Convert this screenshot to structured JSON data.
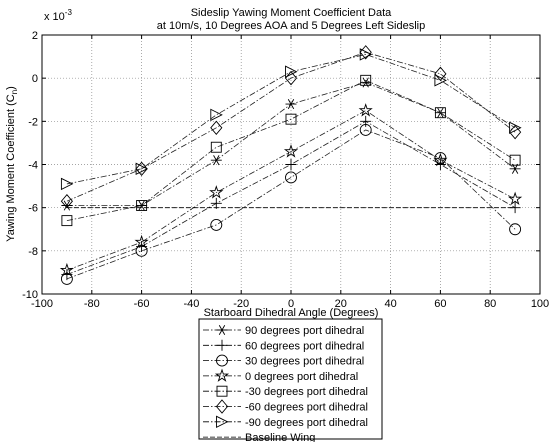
{
  "chart_data": {
    "type": "line",
    "title": "Sideslip Yawing Moment Coefficient Data",
    "subtitle": "at 10m/s, 10 Degrees AOA and 5 Degrees Left Sideslip",
    "xlabel": "Starboard Dihedral Angle (Degrees)",
    "ylabel": "Yawing Moment Coefficient (C",
    "ylabel_sub": "n",
    "ylabel_close": ")",
    "exponent_label": "x 10",
    "exponent_power": "-3",
    "xlim": [
      -100,
      100
    ],
    "ylim": [
      -10,
      2
    ],
    "grid": true,
    "legend_position": "bottom-outside",
    "xticks": [
      "-100",
      "-80",
      "-60",
      "-40",
      "-20",
      "0",
      "20",
      "40",
      "60",
      "80",
      "100"
    ],
    "yticks": [
      "2",
      "0",
      "-2",
      "-4",
      "-6",
      "-8",
      "-10"
    ],
    "x": [
      -90,
      -60,
      -30,
      0,
      30,
      60,
      90
    ],
    "series": [
      {
        "name": "90 degrees port dihedral",
        "marker": "star6",
        "values": [
          -5.9,
          -5.9,
          -3.8,
          -1.2,
          -0.2,
          -1.6,
          -4.2
        ]
      },
      {
        "name": "60 degrees port dihedral",
        "marker": "plus",
        "values": [
          -9.1,
          -7.8,
          -5.8,
          -4.0,
          -2.0,
          -4.0,
          -6.0
        ]
      },
      {
        "name": "30 degrees port dihedral",
        "marker": "circle",
        "values": [
          -9.3,
          -8.0,
          -6.8,
          -4.6,
          -2.4,
          -3.7,
          -7.0
        ]
      },
      {
        "name": "0 degrees port dihedral",
        "marker": "pentagram",
        "values": [
          -8.9,
          -7.6,
          -5.3,
          -3.4,
          -1.5,
          -3.8,
          -5.6
        ]
      },
      {
        "name": "-30 degrees port dihedral",
        "marker": "square",
        "values": [
          -6.6,
          -5.9,
          -3.2,
          -1.9,
          -0.1,
          -1.6,
          -3.8
        ]
      },
      {
        "name": "-60 degrees port dihedral",
        "marker": "diamond",
        "values": [
          -5.7,
          -4.2,
          -2.3,
          0.0,
          1.2,
          0.2,
          -2.5
        ]
      },
      {
        "name": "-90 degrees port dihedral",
        "marker": "triangle-right",
        "values": [
          -4.9,
          -4.2,
          -1.7,
          0.3,
          1.1,
          -0.1,
          -2.3
        ]
      },
      {
        "name": "Baseline Wing",
        "marker": "none",
        "values": [
          -6.0,
          -6.0,
          -6.0,
          -6.0,
          -6.0,
          -6.0,
          -6.0
        ]
      }
    ]
  }
}
